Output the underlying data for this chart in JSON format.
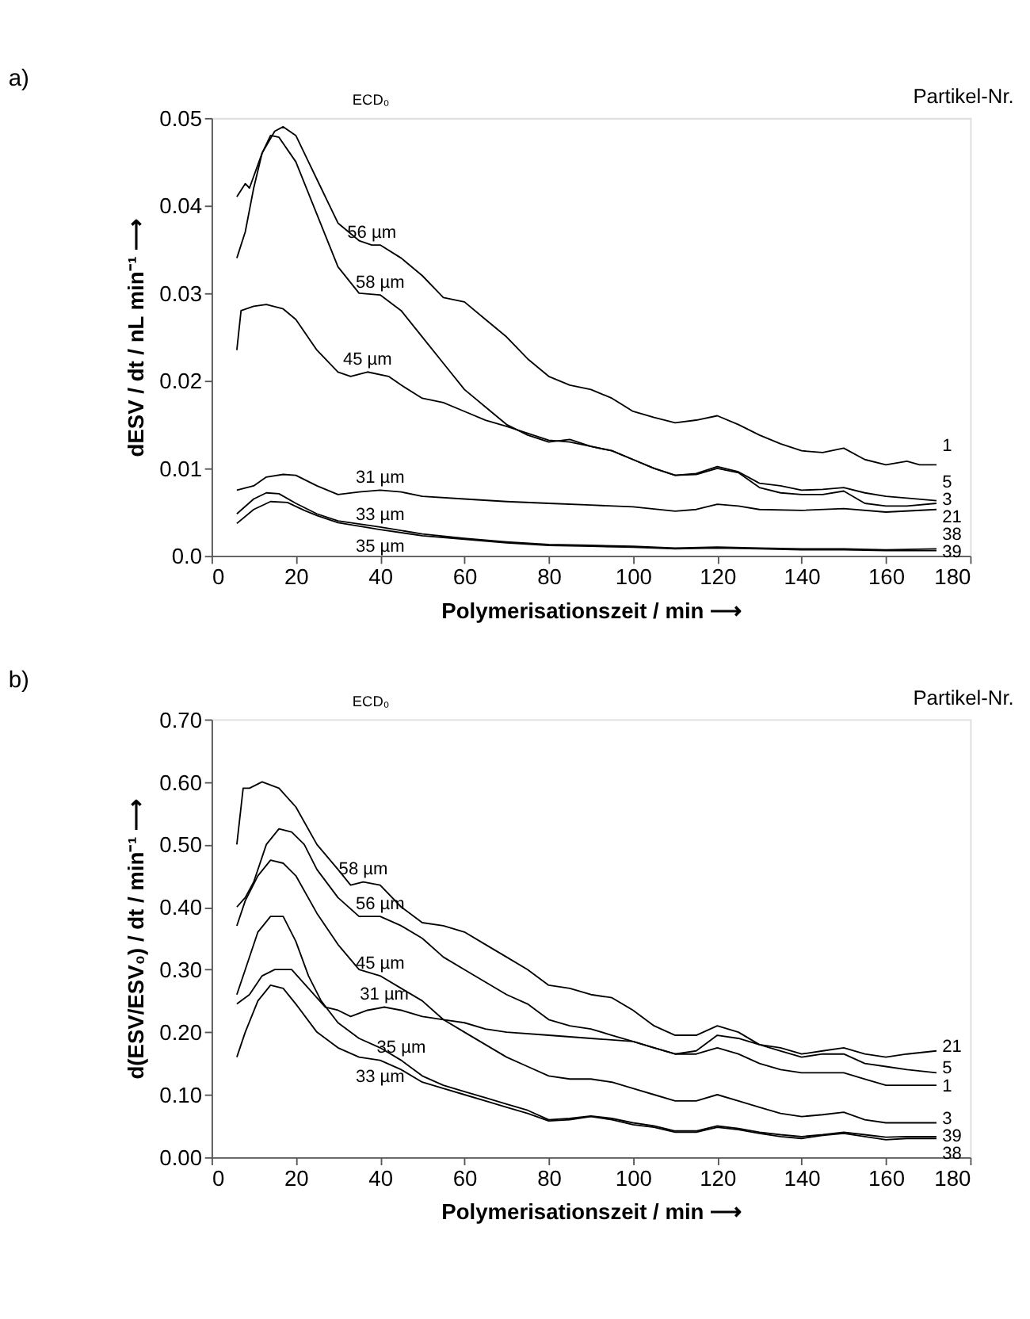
{
  "chart_data": [
    {
      "type": "line",
      "title": "a)",
      "xlabel": "Polymerisationszeit / min ⟶",
      "ylabel": "dESV / dt / nL min⁻¹ ⟶",
      "xlim": [
        0,
        180
      ],
      "xticks": [
        0,
        20,
        40,
        60,
        80,
        100,
        120,
        140,
        160,
        180
      ],
      "ylim": [
        0,
        0.05
      ],
      "yticks": [
        {
          "value": 0,
          "label": "0.0"
        },
        0.01,
        0.02,
        0.03,
        0.04,
        0.05
      ],
      "grid": false,
      "legend": false,
      "marker": "none",
      "line_style": "solid",
      "annotations": [
        "ECD₀",
        "Partikel-Nr.",
        {
          "text": "56 µm",
          "x": 38,
          "y": 0.0355
        },
        {
          "text": "58 µm",
          "x": 40,
          "y": 0.0298
        },
        {
          "text": "45 µm",
          "x": 37,
          "y": 0.021
        },
        {
          "text": "31 µm",
          "x": 40,
          "y": 0.0075
        },
        {
          "text": "33 µm",
          "x": 40,
          "y": 0.0033
        },
        {
          "text": "35 µm",
          "x": 40,
          "y": 0.003
        }
      ],
      "series": [
        {
          "name": "1",
          "color": "#000000",
          "x": [
            6,
            8,
            9,
            12,
            15,
            17,
            20,
            23,
            26,
            30,
            35,
            38,
            40,
            45,
            50,
            55,
            60,
            65,
            70,
            75,
            80,
            85,
            90,
            95,
            100,
            105,
            110,
            115,
            120,
            125,
            130,
            135,
            140,
            145,
            150,
            155,
            160,
            165,
            168,
            172
          ],
          "values": [
            0.041,
            0.0425,
            0.042,
            0.046,
            0.0485,
            0.049,
            0.048,
            0.045,
            0.042,
            0.038,
            0.036,
            0.0355,
            0.0355,
            0.034,
            0.032,
            0.0295,
            0.029,
            0.027,
            0.025,
            0.0225,
            0.0205,
            0.0195,
            0.019,
            0.018,
            0.0165,
            0.0158,
            0.0152,
            0.0155,
            0.016,
            0.015,
            0.0138,
            0.0128,
            0.012,
            0.0118,
            0.0123,
            0.011,
            0.0104,
            0.0108,
            0.0104,
            0.0104
          ]
        },
        {
          "name": "5",
          "color": "#000000",
          "x": [
            6,
            7,
            10,
            13,
            17,
            20,
            25,
            30,
            33,
            37,
            42,
            45,
            50,
            55,
            60,
            65,
            70,
            75,
            80,
            85,
            90,
            95,
            100,
            105,
            110,
            115,
            120,
            125,
            130,
            135,
            140,
            145,
            150,
            155,
            160,
            165,
            172
          ],
          "values": [
            0.0235,
            0.028,
            0.0285,
            0.0287,
            0.0282,
            0.027,
            0.0235,
            0.021,
            0.0205,
            0.021,
            0.0205,
            0.0195,
            0.018,
            0.0175,
            0.0165,
            0.0155,
            0.0148,
            0.014,
            0.0132,
            0.013,
            0.0125,
            0.012,
            0.011,
            0.01,
            0.0092,
            0.0094,
            0.0102,
            0.0096,
            0.0083,
            0.008,
            0.0075,
            0.0076,
            0.0078,
            0.0072,
            0.0068,
            0.0066,
            0.0063
          ]
        },
        {
          "name": "3",
          "color": "#000000",
          "x": [
            6,
            8,
            10,
            12,
            14,
            16,
            20,
            25,
            30,
            35,
            40,
            45,
            50,
            55,
            60,
            65,
            70,
            75,
            80,
            85,
            90,
            95,
            100,
            105,
            110,
            115,
            120,
            125,
            130,
            135,
            140,
            145,
            150,
            155,
            160,
            165,
            172
          ],
          "values": [
            0.034,
            0.037,
            0.042,
            0.046,
            0.048,
            0.0478,
            0.045,
            0.039,
            0.033,
            0.03,
            0.0298,
            0.028,
            0.025,
            0.022,
            0.019,
            0.017,
            0.015,
            0.0138,
            0.013,
            0.0133,
            0.0125,
            0.012,
            0.011,
            0.01,
            0.0092,
            0.0093,
            0.01,
            0.0095,
            0.0078,
            0.0072,
            0.007,
            0.007,
            0.0074,
            0.006,
            0.0057,
            0.0057,
            0.006
          ]
        },
        {
          "name": "21",
          "color": "#000000",
          "x": [
            6,
            10,
            13,
            17,
            20,
            25,
            30,
            35,
            40,
            45,
            50,
            60,
            70,
            80,
            90,
            100,
            110,
            115,
            120,
            125,
            130,
            140,
            150,
            160,
            172
          ],
          "values": [
            0.0075,
            0.008,
            0.009,
            0.0093,
            0.0092,
            0.008,
            0.007,
            0.0073,
            0.0075,
            0.0073,
            0.0068,
            0.0065,
            0.0062,
            0.006,
            0.0058,
            0.0056,
            0.0051,
            0.0053,
            0.0059,
            0.0057,
            0.0053,
            0.0052,
            0.0054,
            0.005,
            0.0053
          ]
        },
        {
          "name": "38",
          "color": "#000000",
          "x": [
            6,
            10,
            13,
            16,
            20,
            25,
            30,
            40,
            50,
            60,
            70,
            80,
            90,
            100,
            110,
            120,
            130,
            140,
            150,
            160,
            172
          ],
          "values": [
            0.0048,
            0.0065,
            0.0072,
            0.0071,
            0.006,
            0.0048,
            0.004,
            0.0033,
            0.0025,
            0.002,
            0.0016,
            0.0013,
            0.0012,
            0.0011,
            0.0009,
            0.001,
            0.0009,
            0.0008,
            0.0008,
            0.0007,
            0.0008
          ]
        },
        {
          "name": "39",
          "color": "#000000",
          "x": [
            6,
            10,
            14,
            18,
            22,
            25,
            30,
            40,
            50,
            60,
            70,
            80,
            90,
            100,
            110,
            120,
            130,
            140,
            150,
            160,
            172
          ],
          "values": [
            0.0037,
            0.0053,
            0.0062,
            0.0061,
            0.0052,
            0.0046,
            0.0038,
            0.003,
            0.0023,
            0.0019,
            0.0015,
            0.0012,
            0.0011,
            0.001,
            0.0008,
            0.0009,
            0.0008,
            0.0007,
            0.0007,
            0.0006,
            0.0006
          ]
        }
      ]
    },
    {
      "type": "line",
      "title": "b)",
      "xlabel": "Polymerisationszeit / min ⟶",
      "ylabel": "d(ESV/ESV₀) / dt / min⁻¹ ⟶",
      "xlim": [
        0,
        180
      ],
      "xticks": [
        0,
        20,
        40,
        60,
        80,
        100,
        120,
        140,
        160,
        180
      ],
      "ylim": [
        0,
        0.7
      ],
      "yticks": [
        {
          "value": 0,
          "label": "0.00"
        },
        {
          "value": 0.1,
          "label": "0.10"
        },
        {
          "value": 0.2,
          "label": "0.20"
        },
        {
          "value": 0.3,
          "label": "0.30"
        },
        {
          "value": 0.4,
          "label": "0.40"
        },
        {
          "value": 0.5,
          "label": "0.50"
        },
        {
          "value": 0.6,
          "label": "0.60"
        },
        {
          "value": 0.7,
          "label": "0.70"
        }
      ],
      "grid": false,
      "legend": false,
      "marker": "none",
      "line_style": "solid",
      "annotations": [
        "ECD₀",
        "Partikel-Nr.",
        {
          "text": "58 µm",
          "x": 36,
          "y": 0.44
        },
        {
          "text": "56 µm",
          "x": 40,
          "y": 0.385
        },
        {
          "text": "45 µm",
          "x": 40,
          "y": 0.29
        },
        {
          "text": "31 µm",
          "x": 41,
          "y": 0.24
        },
        {
          "text": "35 µm",
          "x": 45,
          "y": 0.155
        },
        {
          "text": "33 µm",
          "x": 40,
          "y": 0.155
        }
      ],
      "series": [
        {
          "name": "21",
          "color": "#000000",
          "x": [
            6,
            9,
            12,
            15,
            19,
            23,
            27,
            30,
            33,
            37,
            41,
            45,
            50,
            55,
            60,
            65,
            70,
            80,
            90,
            100,
            105,
            110,
            115,
            120,
            125,
            130,
            135,
            140,
            145,
            150,
            155,
            160,
            165,
            172
          ],
          "values": [
            0.245,
            0.26,
            0.29,
            0.3,
            0.3,
            0.27,
            0.24,
            0.235,
            0.225,
            0.235,
            0.24,
            0.235,
            0.225,
            0.22,
            0.215,
            0.205,
            0.2,
            0.195,
            0.19,
            0.185,
            0.175,
            0.165,
            0.17,
            0.195,
            0.19,
            0.18,
            0.175,
            0.165,
            0.17,
            0.175,
            0.165,
            0.16,
            0.165,
            0.17
          ]
        },
        {
          "name": "5",
          "color": "#000000",
          "x": [
            6,
            7.5,
            9,
            12,
            16,
            20,
            25,
            30,
            33,
            36,
            40,
            45,
            50,
            55,
            60,
            65,
            70,
            75,
            80,
            85,
            90,
            95,
            100,
            105,
            110,
            115,
            120,
            125,
            130,
            135,
            140,
            145,
            150,
            155,
            160,
            165,
            172
          ],
          "values": [
            0.5,
            0.59,
            0.59,
            0.6,
            0.59,
            0.56,
            0.5,
            0.46,
            0.435,
            0.44,
            0.435,
            0.4,
            0.375,
            0.37,
            0.36,
            0.34,
            0.32,
            0.3,
            0.275,
            0.27,
            0.26,
            0.255,
            0.235,
            0.21,
            0.195,
            0.195,
            0.21,
            0.2,
            0.18,
            0.17,
            0.16,
            0.165,
            0.165,
            0.15,
            0.145,
            0.14,
            0.135
          ]
        },
        {
          "name": "1",
          "color": "#000000",
          "x": [
            6,
            8,
            10,
            13,
            16,
            19,
            22,
            25,
            30,
            35,
            40,
            45,
            50,
            55,
            60,
            65,
            70,
            75,
            80,
            85,
            90,
            95,
            100,
            105,
            110,
            115,
            120,
            125,
            130,
            135,
            140,
            145,
            150,
            155,
            160,
            165,
            172
          ],
          "values": [
            0.4,
            0.415,
            0.44,
            0.5,
            0.525,
            0.52,
            0.5,
            0.46,
            0.415,
            0.385,
            0.385,
            0.37,
            0.35,
            0.32,
            0.3,
            0.28,
            0.26,
            0.245,
            0.22,
            0.21,
            0.205,
            0.195,
            0.185,
            0.175,
            0.165,
            0.165,
            0.175,
            0.165,
            0.15,
            0.14,
            0.135,
            0.135,
            0.135,
            0.125,
            0.115,
            0.115,
            0.115
          ]
        },
        {
          "name": "3",
          "color": "#000000",
          "x": [
            6,
            8,
            11,
            14,
            17,
            20,
            25,
            30,
            35,
            40,
            45,
            50,
            55,
            60,
            65,
            70,
            75,
            80,
            85,
            90,
            95,
            100,
            105,
            110,
            115,
            120,
            125,
            130,
            135,
            140,
            145,
            150,
            155,
            160,
            165,
            172
          ],
          "values": [
            0.37,
            0.41,
            0.45,
            0.475,
            0.47,
            0.45,
            0.39,
            0.34,
            0.3,
            0.29,
            0.27,
            0.25,
            0.22,
            0.2,
            0.18,
            0.16,
            0.145,
            0.13,
            0.125,
            0.125,
            0.12,
            0.11,
            0.1,
            0.09,
            0.09,
            0.1,
            0.09,
            0.08,
            0.07,
            0.065,
            0.068,
            0.072,
            0.06,
            0.055,
            0.055,
            0.055
          ]
        },
        {
          "name": "39",
          "color": "#000000",
          "x": [
            6,
            8,
            11,
            14,
            17,
            20,
            23,
            26,
            30,
            35,
            40,
            45,
            50,
            55,
            60,
            65,
            70,
            75,
            80,
            85,
            90,
            95,
            100,
            105,
            110,
            115,
            120,
            125,
            130,
            135,
            140,
            145,
            150,
            155,
            160,
            165,
            172
          ],
          "values": [
            0.26,
            0.3,
            0.36,
            0.385,
            0.385,
            0.345,
            0.29,
            0.25,
            0.215,
            0.19,
            0.175,
            0.155,
            0.13,
            0.115,
            0.105,
            0.095,
            0.085,
            0.075,
            0.06,
            0.062,
            0.066,
            0.062,
            0.055,
            0.05,
            0.042,
            0.042,
            0.05,
            0.046,
            0.04,
            0.036,
            0.033,
            0.036,
            0.04,
            0.036,
            0.032,
            0.033,
            0.033
          ]
        },
        {
          "name": "38",
          "color": "#000000",
          "x": [
            6,
            8,
            11,
            14,
            17,
            20,
            25,
            30,
            35,
            40,
            45,
            50,
            55,
            60,
            65,
            70,
            75,
            80,
            85,
            90,
            95,
            100,
            105,
            110,
            115,
            120,
            125,
            130,
            135,
            140,
            145,
            150,
            155,
            160,
            165,
            172
          ],
          "values": [
            0.16,
            0.2,
            0.25,
            0.275,
            0.27,
            0.245,
            0.2,
            0.175,
            0.16,
            0.155,
            0.14,
            0.12,
            0.11,
            0.1,
            0.09,
            0.08,
            0.07,
            0.058,
            0.06,
            0.065,
            0.06,
            0.052,
            0.048,
            0.04,
            0.04,
            0.048,
            0.044,
            0.038,
            0.033,
            0.03,
            0.035,
            0.038,
            0.033,
            0.028,
            0.03,
            0.03
          ]
        }
      ]
    }
  ]
}
